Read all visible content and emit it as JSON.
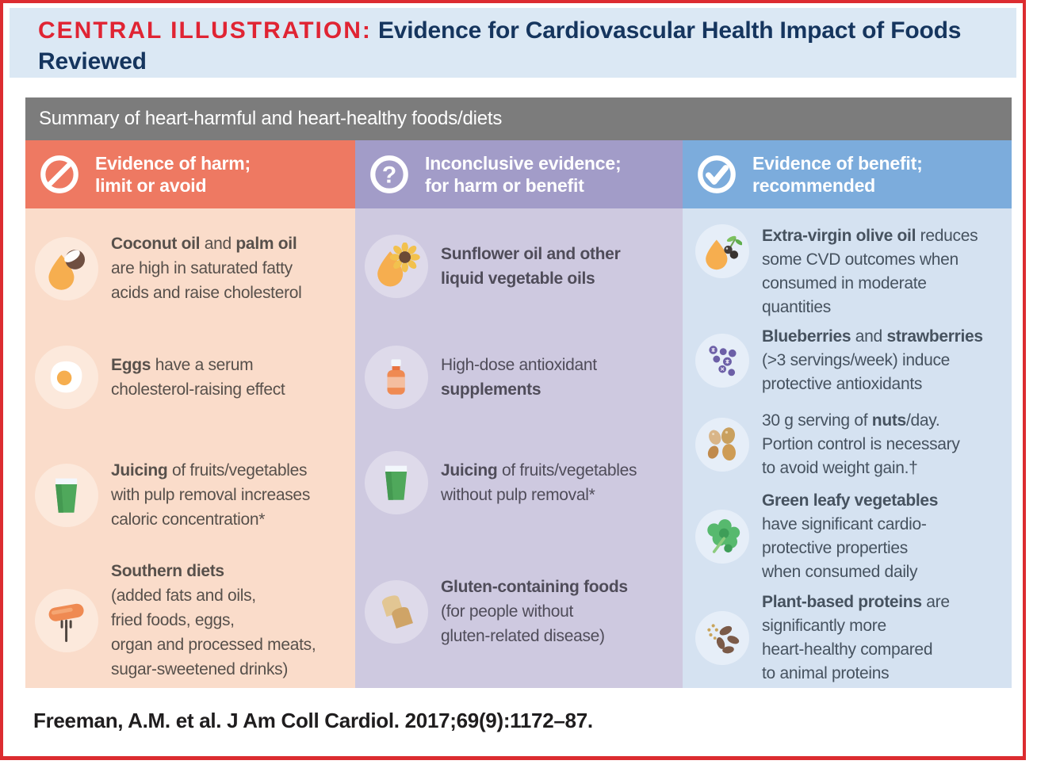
{
  "title": {
    "prefix": "CENTRAL ILLUSTRATION:",
    "rest": " Evidence for Cardiovascular Health Impact of Foods Reviewed"
  },
  "summary_bar": "Summary of heart-harmful and heart-healthy foods/diets",
  "colors": {
    "border_red": "#DC2C30",
    "title_red": "#E02433",
    "title_navy": "#15355E",
    "summary_gray": "#7C7C7C",
    "title_band_blue": "#DBE8F4"
  },
  "columns": [
    {
      "id": "harm",
      "header": {
        "icon": "prohibition-icon",
        "lines": [
          "Evidence of harm;",
          "limit or avoid"
        ]
      },
      "colors": {
        "header": "#EE7962",
        "body": "#FADCCA",
        "chip": "#FCE9DC",
        "text": "#57504B"
      },
      "items": [
        {
          "icon": "coconut-oil-icon",
          "lines": [
            [
              {
                "t": "Coconut oil",
                "b": true
              },
              {
                "t": " and ",
                "b": false
              },
              {
                "t": "palm oil",
                "b": true
              }
            ],
            [
              {
                "t": "are high in saturated fatty",
                "b": false
              }
            ],
            [
              {
                "t": "acids and raise cholesterol",
                "b": false
              }
            ]
          ]
        },
        {
          "icon": "fried-egg-icon",
          "lines": [
            [
              {
                "t": "Eggs",
                "b": true
              },
              {
                "t": " have a serum",
                "b": false
              }
            ],
            [
              {
                "t": "cholesterol-raising effect",
                "b": false
              }
            ]
          ]
        },
        {
          "icon": "juice-glass-icon",
          "lines": [
            [
              {
                "t": "Juicing",
                "b": true
              },
              {
                "t": " of fruits/vegetables",
                "b": false
              }
            ],
            [
              {
                "t": "with pulp removal increases",
                "b": false
              }
            ],
            [
              {
                "t": "caloric concentration*",
                "b": false
              }
            ]
          ]
        },
        {
          "icon": "sausage-fork-icon",
          "lines": [
            [
              {
                "t": "Southern diets",
                "b": true
              }
            ],
            [
              {
                "t": "(added fats and oils,",
                "b": false
              }
            ],
            [
              {
                "t": "fried foods, eggs,",
                "b": false
              }
            ],
            [
              {
                "t": "organ and processed meats,",
                "b": false
              }
            ],
            [
              {
                "t": "sugar-sweetened drinks)",
                "b": false
              }
            ]
          ]
        }
      ]
    },
    {
      "id": "inconclusive",
      "header": {
        "icon": "question-icon",
        "lines": [
          "Inconclusive evidence;",
          "for harm or benefit"
        ]
      },
      "colors": {
        "header": "#A29CC8",
        "body": "#CEC9E0",
        "chip": "#DEDAEA",
        "text": "#4F4C59"
      },
      "items": [
        {
          "icon": "sunflower-oil-icon",
          "lines": [
            [
              {
                "t": "Sunflower oil and other",
                "b": true
              }
            ],
            [
              {
                "t": "liquid vegetable oils",
                "b": true
              }
            ]
          ]
        },
        {
          "icon": "supplement-bottle-icon",
          "lines": [
            [
              {
                "t": "High-dose antioxidant",
                "b": false
              }
            ],
            [
              {
                "t": "supplements",
                "b": true
              }
            ]
          ]
        },
        {
          "icon": "juice-glass-icon",
          "lines": [
            [
              {
                "t": "Juicing",
                "b": true
              },
              {
                "t": " of fruits/vegetables",
                "b": false
              }
            ],
            [
              {
                "t": "without pulp removal*",
                "b": false
              }
            ]
          ]
        },
        {
          "icon": "bread-slices-icon",
          "lines": [
            [
              {
                "t": "Gluten-containing foods",
                "b": true
              }
            ],
            [
              {
                "t": "(for people without",
                "b": false
              }
            ],
            [
              {
                "t": "gluten-related disease)",
                "b": false
              }
            ]
          ]
        }
      ]
    },
    {
      "id": "benefit",
      "header": {
        "icon": "check-icon",
        "lines": [
          "Evidence of benefit;",
          "recommended"
        ]
      },
      "colors": {
        "header": "#7CACDC",
        "body": "#D5E2F1",
        "chip": "#E6EEF8",
        "text": "#46525F"
      },
      "items": [
        {
          "icon": "olive-oil-icon",
          "lines": [
            [
              {
                "t": "Extra-virgin olive oil",
                "b": true
              },
              {
                "t": " reduces",
                "b": false
              }
            ],
            [
              {
                "t": "some CVD outcomes when",
                "b": false
              }
            ],
            [
              {
                "t": "consumed in moderate",
                "b": false
              }
            ],
            [
              {
                "t": "quantities",
                "b": false
              }
            ]
          ]
        },
        {
          "icon": "berries-icon",
          "lines": [
            [
              {
                "t": "Blueberries",
                "b": true
              },
              {
                "t": " and ",
                "b": false
              },
              {
                "t": "strawberries",
                "b": true
              }
            ],
            [
              {
                "t": "(>3 servings/week) induce",
                "b": false
              }
            ],
            [
              {
                "t": "protective antioxidants",
                "b": false
              }
            ]
          ]
        },
        {
          "icon": "nuts-icon",
          "lines": [
            [
              {
                "t": "30 g serving of ",
                "b": false
              },
              {
                "t": "nuts",
                "b": true
              },
              {
                "t": "/day.",
                "b": false
              }
            ],
            [
              {
                "t": "Portion control is necessary",
                "b": false
              }
            ],
            [
              {
                "t": "to avoid weight gain.†",
                "b": false
              }
            ]
          ]
        },
        {
          "icon": "leafy-greens-icon",
          "lines": [
            [
              {
                "t": "Green leafy vegetables",
                "b": true
              }
            ],
            [
              {
                "t": "have significant cardio-",
                "b": false
              }
            ],
            [
              {
                "t": "protective properties",
                "b": false
              }
            ],
            [
              {
                "t": "when consumed daily",
                "b": false
              }
            ]
          ]
        },
        {
          "icon": "plant-protein-icon",
          "lines": [
            [
              {
                "t": "Plant-based proteins",
                "b": true
              },
              {
                "t": " are",
                "b": false
              }
            ],
            [
              {
                "t": "significantly more",
                "b": false
              }
            ],
            [
              {
                "t": "heart-healthy compared",
                "b": false
              }
            ],
            [
              {
                "t": "to animal proteins",
                "b": false
              }
            ]
          ]
        }
      ]
    }
  ],
  "citation": "Freeman, A.M. et al. J Am Coll Cardiol. 2017;69(9):1172–87."
}
